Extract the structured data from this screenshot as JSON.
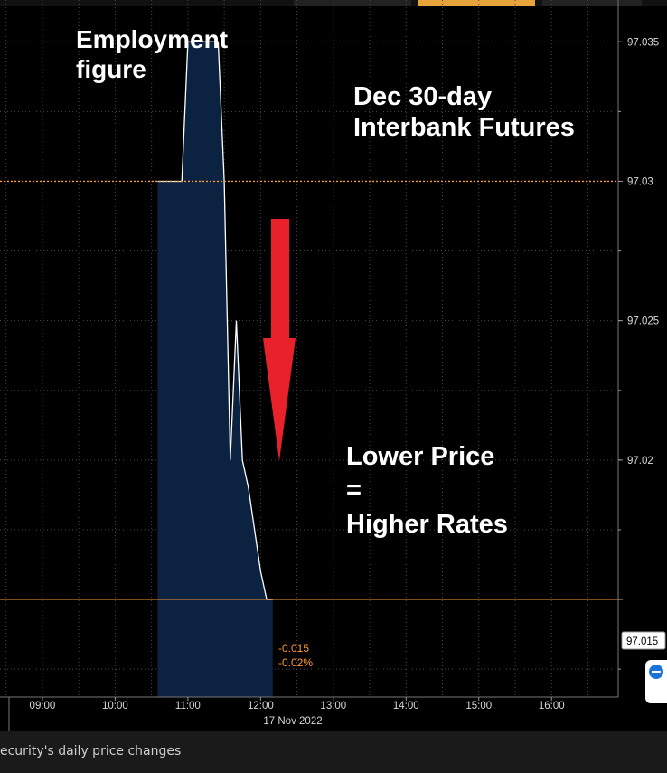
{
  "annotations": {
    "employment": "Employment\nfigure",
    "instrument": "Dec 30-day\nInterbank Futures",
    "lower_price": "Lower Price",
    "equals": "=",
    "higher_rates": "Higher Rates"
  },
  "footer": {
    "text": "ecurity's daily price changes"
  },
  "colors": {
    "area_fill": "#0b2240",
    "line": "#ffffff",
    "reference_line": "#ff9933",
    "current_line": "#ff9933",
    "arrow": "#e8212a",
    "grid": "#4a4a4a"
  },
  "icons": {
    "side": "remote-control-icon"
  },
  "chart_data": {
    "type": "area",
    "title": "",
    "xlabel": "17 Nov 2022",
    "ylabel": "",
    "x_tick_labels": [
      "09:00",
      "10:00",
      "11:00",
      "12:00",
      "13:00",
      "14:00",
      "15:00",
      "16:00"
    ],
    "y_tick_labels": [
      "97.035",
      "97.03",
      "97.025",
      "97.02",
      "97.015"
    ],
    "ylim": [
      97.0115,
      97.0365
    ],
    "xlim": [
      "08:25",
      "16:55"
    ],
    "series": [
      {
        "x": [
          "10:35",
          "10:55",
          "11:00",
          "11:05",
          "11:10",
          "11:15",
          "11:20",
          "11:25",
          "11:30",
          "11:35",
          "11:40",
          "11:45",
          "11:50",
          "12:00",
          "12:05",
          "12:10"
        ],
        "values": [
          97.03,
          97.03,
          97.035,
          97.035,
          97.035,
          97.035,
          97.035,
          97.035,
          97.03,
          97.02,
          97.025,
          97.02,
          97.019,
          97.016,
          97.015,
          97.015
        ]
      }
    ],
    "reference_line": {
      "value": 97.03
    },
    "current_value": {
      "value": 97.015,
      "label": "97.015",
      "change": "-0.015",
      "change_pct": "-0.02%"
    },
    "grid": true
  }
}
